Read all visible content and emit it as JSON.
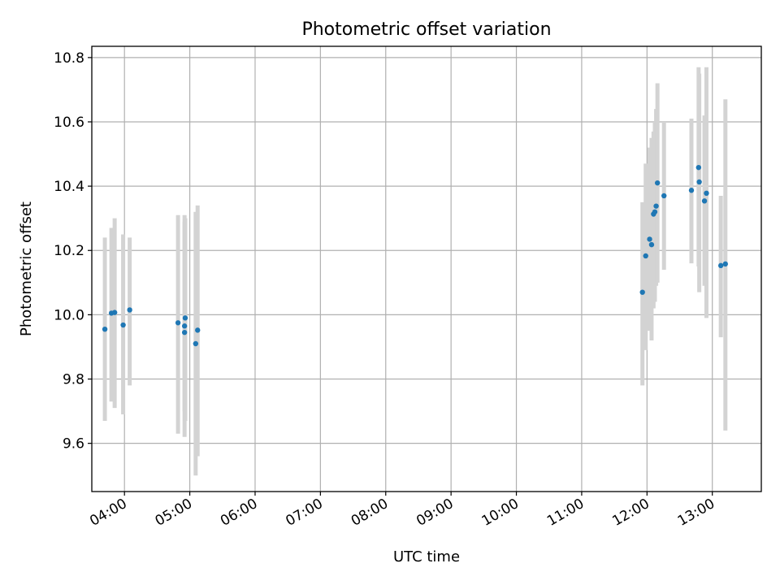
{
  "chart_data": {
    "type": "scatter",
    "title": "Photometric offset variation",
    "xlabel": "UTC time",
    "ylabel": "Photometric offset",
    "x_unit": "hours UTC",
    "xlim": [
      3.5,
      13.75
    ],
    "ylim": [
      9.45,
      10.835
    ],
    "x_ticks": [
      {
        "value": 4,
        "label": "04:00"
      },
      {
        "value": 5,
        "label": "05:00"
      },
      {
        "value": 6,
        "label": "06:00"
      },
      {
        "value": 7,
        "label": "07:00"
      },
      {
        "value": 8,
        "label": "08:00"
      },
      {
        "value": 9,
        "label": "09:00"
      },
      {
        "value": 10,
        "label": "10:00"
      },
      {
        "value": 11,
        "label": "11:00"
      },
      {
        "value": 12,
        "label": "12:00"
      },
      {
        "value": 13,
        "label": "13:00"
      }
    ],
    "y_ticks": [
      {
        "value": 9.6,
        "label": "9.6"
      },
      {
        "value": 9.8,
        "label": "9.8"
      },
      {
        "value": 10.0,
        "label": "10.0"
      },
      {
        "value": 10.2,
        "label": "10.2"
      },
      {
        "value": 10.4,
        "label": "10.4"
      },
      {
        "value": 10.6,
        "label": "10.6"
      },
      {
        "value": 10.8,
        "label": "10.8"
      }
    ],
    "grid": true,
    "point_color": "#1f77b4",
    "errorbar_color": "#d3d3d3",
    "points": [
      {
        "x": 3.7,
        "y": 9.955,
        "err_low": 9.67,
        "err_high": 10.24
      },
      {
        "x": 3.8,
        "y": 10.005,
        "err_low": 9.73,
        "err_high": 10.27
      },
      {
        "x": 3.85,
        "y": 10.007,
        "err_low": 9.71,
        "err_high": 10.3
      },
      {
        "x": 3.98,
        "y": 9.968,
        "err_low": 9.69,
        "err_high": 10.25
      },
      {
        "x": 4.08,
        "y": 10.015,
        "err_low": 9.78,
        "err_high": 10.24
      },
      {
        "x": 4.82,
        "y": 9.975,
        "err_low": 9.63,
        "err_high": 10.31
      },
      {
        "x": 4.92,
        "y": 9.965,
        "err_low": 9.62,
        "err_high": 10.31
      },
      {
        "x": 4.92,
        "y": 9.945,
        "err_low": 9.7,
        "err_high": 10.29
      },
      {
        "x": 4.93,
        "y": 9.99,
        "err_low": 9.67,
        "err_high": 10.3
      },
      {
        "x": 5.09,
        "y": 9.91,
        "err_low": 9.5,
        "err_high": 10.32
      },
      {
        "x": 5.12,
        "y": 9.952,
        "err_low": 9.56,
        "err_high": 10.34
      },
      {
        "x": 11.93,
        "y": 10.07,
        "err_low": 9.78,
        "err_high": 10.35
      },
      {
        "x": 11.98,
        "y": 10.183,
        "err_low": 9.89,
        "err_high": 10.47
      },
      {
        "x": 12.04,
        "y": 10.235,
        "err_low": 9.95,
        "err_high": 10.52
      },
      {
        "x": 12.07,
        "y": 10.218,
        "err_low": 9.92,
        "err_high": 10.55
      },
      {
        "x": 12.1,
        "y": 10.313,
        "err_low": 10.02,
        "err_high": 10.57
      },
      {
        "x": 12.12,
        "y": 10.32,
        "err_low": 10.04,
        "err_high": 10.6
      },
      {
        "x": 12.14,
        "y": 10.338,
        "err_low": 10.09,
        "err_high": 10.64
      },
      {
        "x": 12.16,
        "y": 10.41,
        "err_low": 10.1,
        "err_high": 10.72
      },
      {
        "x": 12.26,
        "y": 10.37,
        "err_low": 10.14,
        "err_high": 10.6
      },
      {
        "x": 12.68,
        "y": 10.387,
        "err_low": 10.16,
        "err_high": 10.61
      },
      {
        "x": 12.79,
        "y": 10.458,
        "err_low": 10.15,
        "err_high": 10.77
      },
      {
        "x": 12.8,
        "y": 10.413,
        "err_low": 10.07,
        "err_high": 10.75
      },
      {
        "x": 12.88,
        "y": 10.354,
        "err_low": 10.09,
        "err_high": 10.62
      },
      {
        "x": 12.91,
        "y": 10.378,
        "err_low": 9.99,
        "err_high": 10.77
      },
      {
        "x": 13.13,
        "y": 10.153,
        "err_low": 9.93,
        "err_high": 10.37
      },
      {
        "x": 13.2,
        "y": 10.158,
        "err_low": 9.64,
        "err_high": 10.67
      }
    ]
  }
}
